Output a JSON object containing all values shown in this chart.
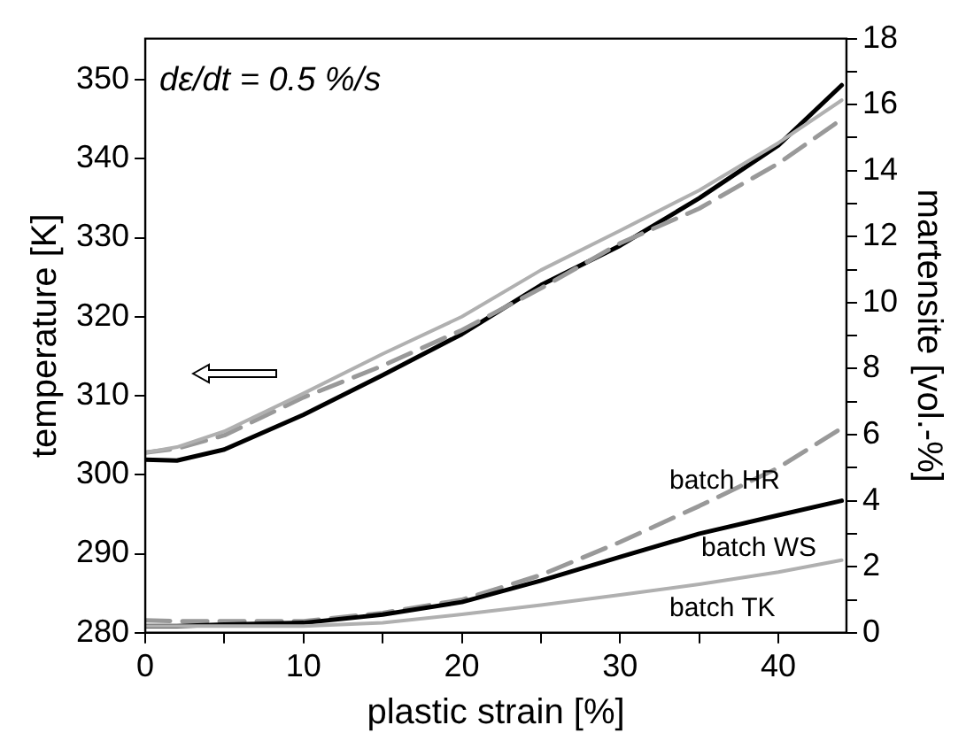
{
  "chart_data": {
    "type": "line",
    "xlabel": "plastic strain [%]",
    "ylabel": "temperature [K]",
    "y2label": "martensite [vol.-%]",
    "annotations": [
      "dε/dt = 0.5 %/s"
    ],
    "x": [
      0,
      2,
      5,
      10,
      15,
      20,
      25,
      30,
      35,
      40,
      44
    ],
    "xlim": [
      0,
      44.3
    ],
    "xticks": [
      0,
      {
        "value": 5,
        "label": null
      },
      10,
      {
        "value": 15,
        "label": null
      },
      20,
      {
        "value": 25,
        "label": null
      },
      30,
      {
        "value": 35,
        "label": null
      },
      40
    ],
    "ylim": [
      280,
      355.2
    ],
    "yticks": [
      280,
      290,
      300,
      310,
      320,
      330,
      340,
      350
    ],
    "y2lim": [
      0,
      18
    ],
    "y2ticks": [
      0,
      {
        "value": 1,
        "label": null
      },
      2,
      {
        "value": 3,
        "label": null
      },
      4,
      {
        "value": 5,
        "label": null
      },
      6,
      {
        "value": 7,
        "label": null
      },
      8,
      {
        "value": 9,
        "label": null
      },
      10,
      {
        "value": 11,
        "label": null
      },
      12,
      {
        "value": 13,
        "label": null
      },
      14,
      {
        "value": 15,
        "label": null
      },
      16,
      {
        "value": 17,
        "label": null
      },
      18
    ],
    "grid": false,
    "legend": false,
    "marker": "none",
    "series": [
      {
        "color": "#000000",
        "line_style": "solid",
        "values": [
          301.9,
          301.8,
          303.2,
          307.6,
          312.6,
          317.8,
          324,
          329,
          335,
          341.7,
          349.3
        ]
      },
      {
        "color": "#999999",
        "line_style": "dashed",
        "values": [
          302.8,
          303.3,
          305,
          309.8,
          313.8,
          318.3,
          323.6,
          329.3,
          333.7,
          339.4,
          345
        ]
      },
      {
        "color": "#b0b0b0",
        "line_style": "solid",
        "values": [
          302.8,
          303.5,
          305.5,
          310.3,
          315.3,
          320,
          325.9,
          330.9,
          336,
          342,
          347.4
        ]
      },
      {
        "name": "batch HR",
        "color": "#999999",
        "line_style": "dashed",
        "axis": "y2",
        "values": [
          0.38,
          0.35,
          0.35,
          0.35,
          0.6,
          1.0,
          1.75,
          2.75,
          3.84,
          5.0,
          6.2
        ]
      },
      {
        "name": "batch WS",
        "color": "#000000",
        "line_style": "solid",
        "axis": "y2",
        "values": [
          0.2,
          0.2,
          0.25,
          0.3,
          0.55,
          0.93,
          1.58,
          2.3,
          3.0,
          3.56,
          4.0
        ]
      },
      {
        "name": "batch TK",
        "color": "#b0b0b0",
        "line_style": "solid",
        "axis": "y2",
        "values": [
          0.2,
          0.2,
          0.2,
          0.2,
          0.3,
          0.56,
          0.84,
          1.15,
          1.47,
          1.84,
          2.2
        ]
      }
    ]
  }
}
